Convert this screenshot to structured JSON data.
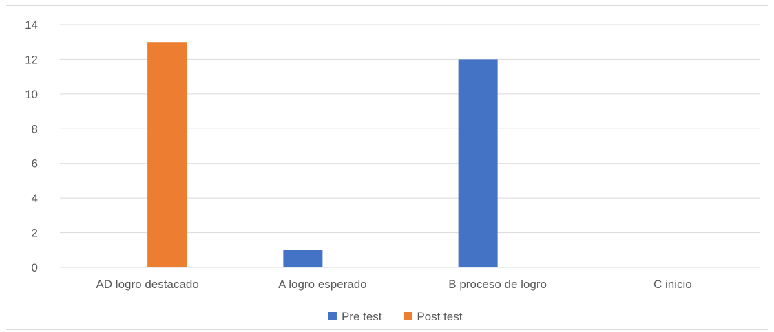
{
  "chart_data": {
    "type": "bar",
    "categories": [
      "AD logro destacado",
      "A logro esperado",
      "B proceso de logro",
      "C inicio"
    ],
    "series": [
      {
        "name": "Pre test",
        "values": [
          0,
          1,
          12,
          0
        ],
        "color": "#4472C4"
      },
      {
        "name": "Post test",
        "values": [
          13,
          0,
          0,
          0
        ],
        "color": "#ED7D31"
      }
    ],
    "yticks": [
      "0",
      "2",
      "4",
      "6",
      "8",
      "10",
      "12",
      "14"
    ],
    "ylim": [
      0,
      14
    ],
    "grid": true,
    "legend_position": "bottom",
    "title": "",
    "xlabel": "",
    "ylabel": ""
  }
}
